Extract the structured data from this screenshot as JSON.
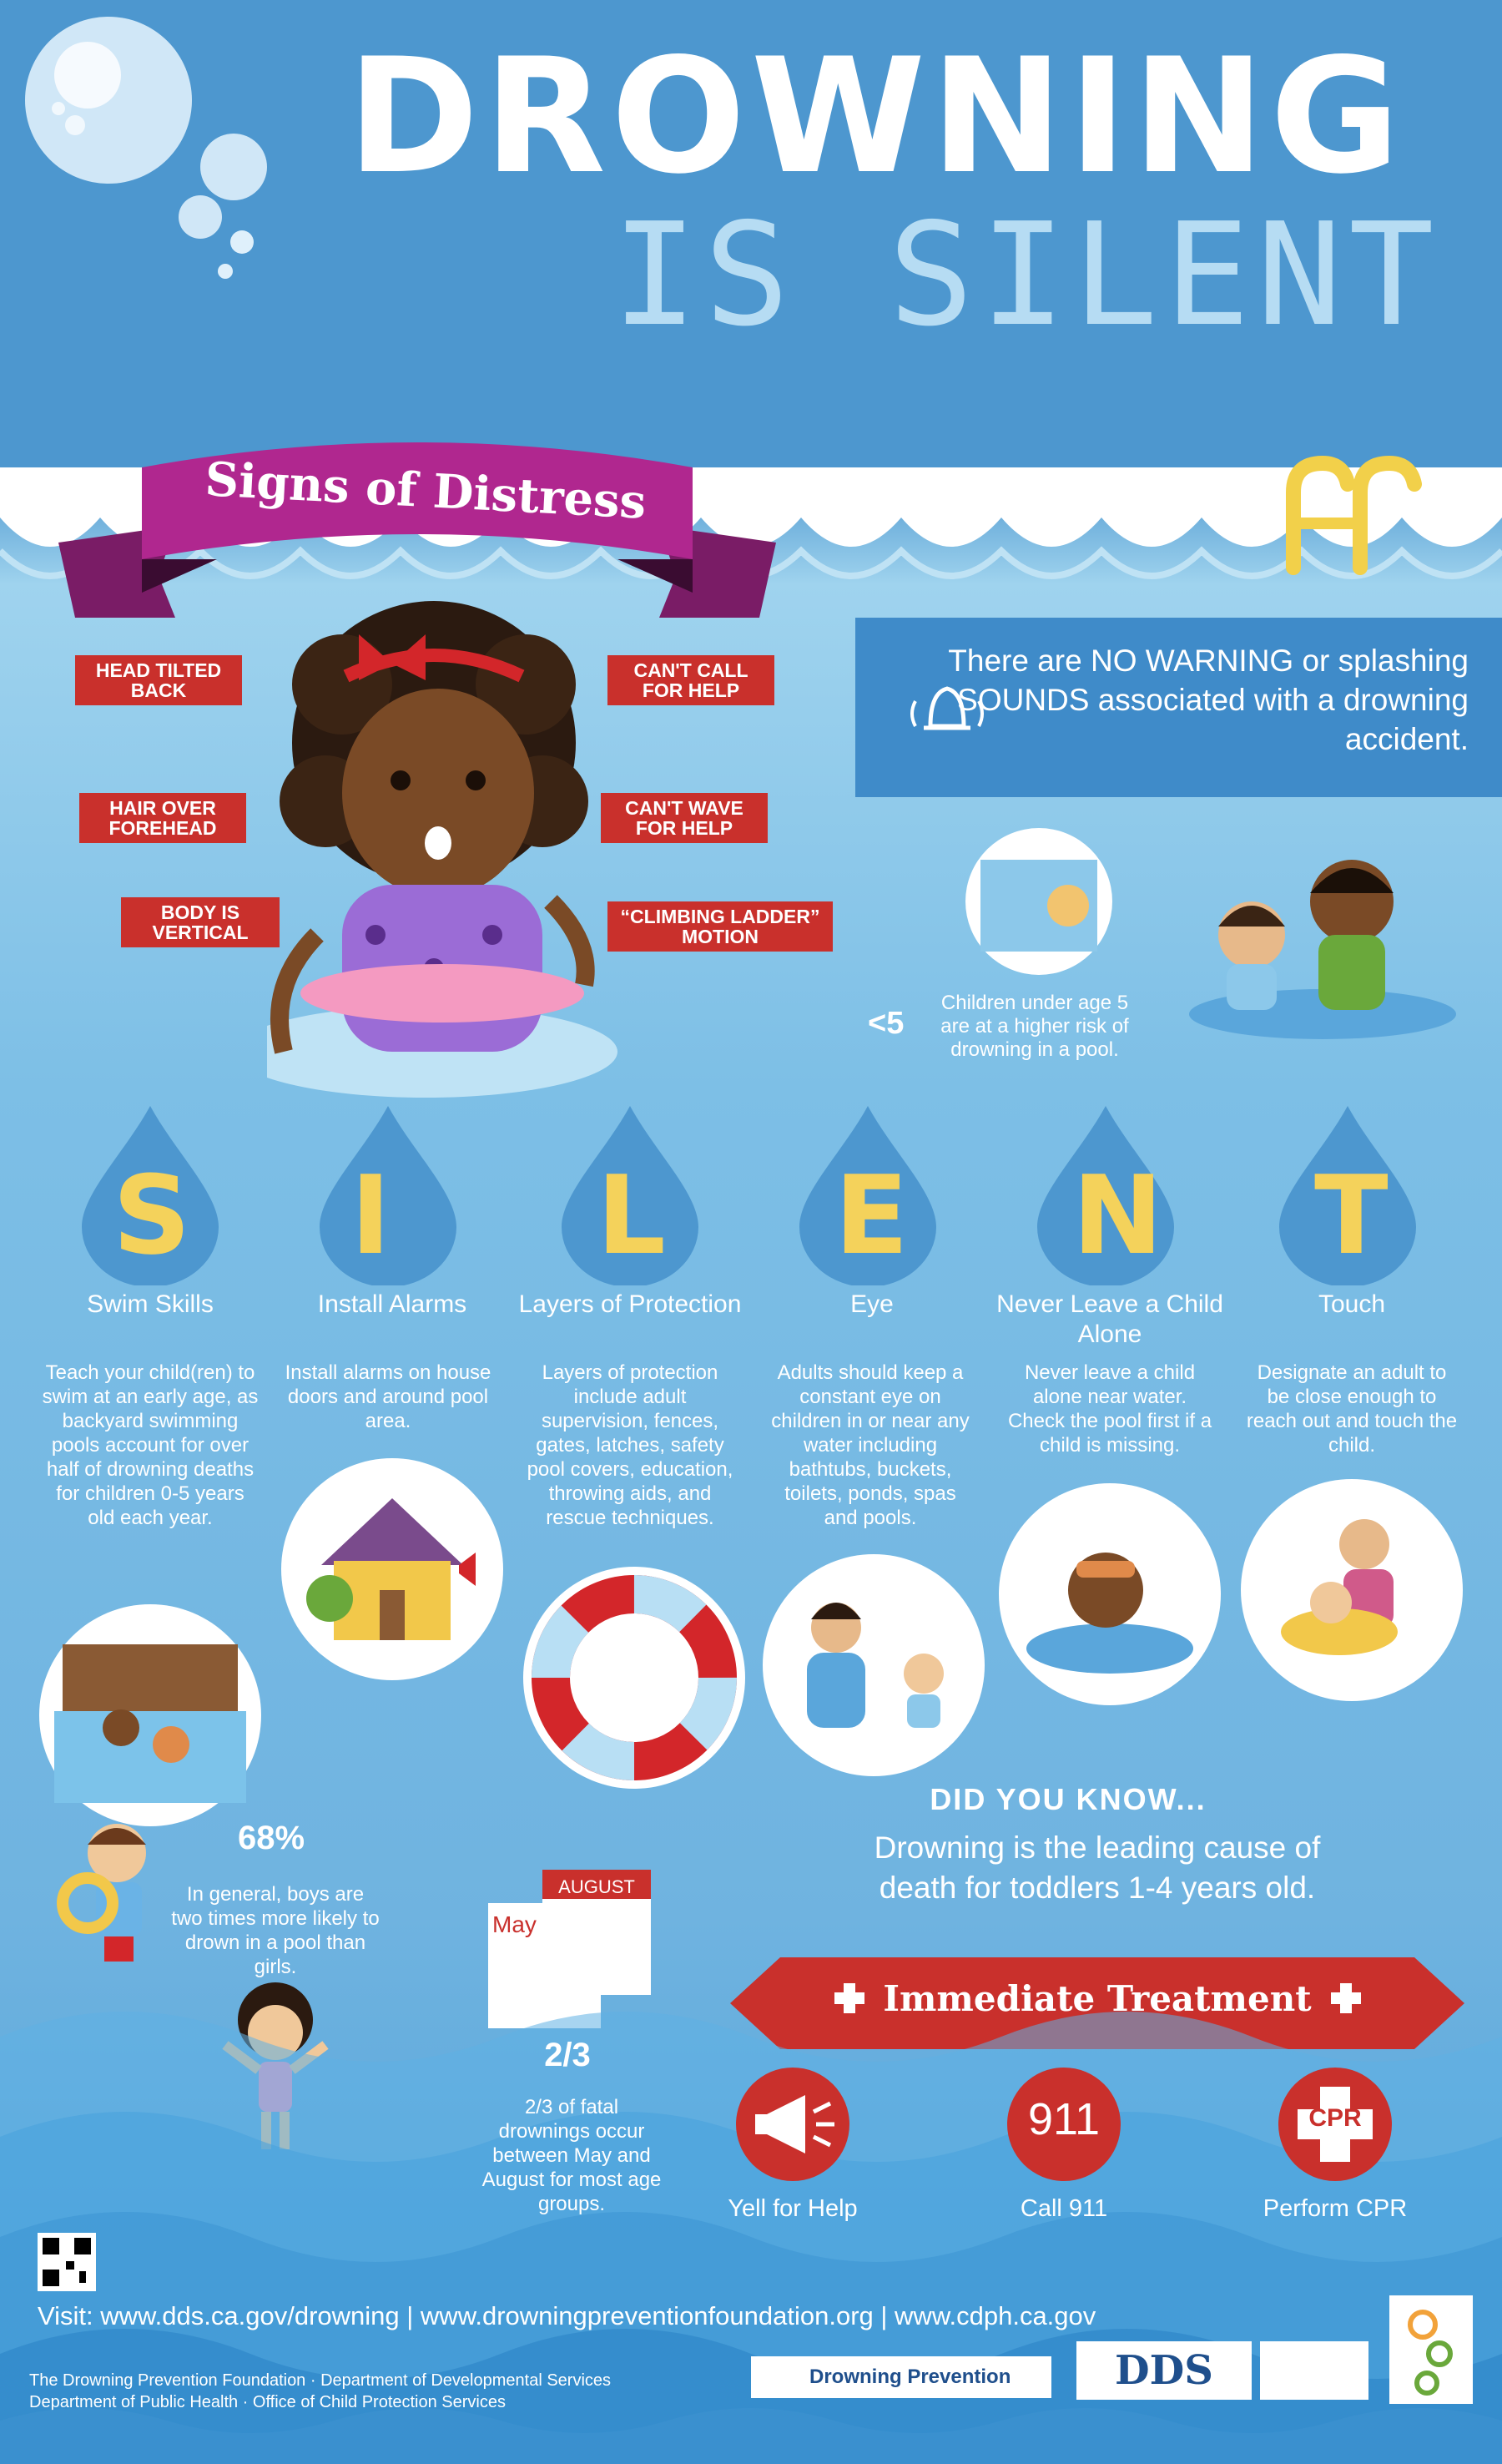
{
  "title": {
    "line1": "DROWNING",
    "line2": "IS SILENT"
  },
  "signs": {
    "banner": "Signs of Distress",
    "tags": [
      "HEAD TILTED BACK",
      "HAIR OVER FOREHEAD",
      "BODY IS VERTICAL",
      "CAN'T CALL FOR HELP",
      "CAN'T WAVE FOR HELP",
      "“CLIMBING LADDER” MOTION"
    ]
  },
  "no_warning": "There are NO WARNING or splashing SOUNDS associated with a drowning accident.",
  "under5": {
    "symbol": "<5",
    "text": "Children under age 5 are at a higher risk of drowning in a pool."
  },
  "silent": [
    {
      "letter": "S",
      "title": "Swim Skills",
      "body": "Teach your child(ren) to swim at an early age, as backyard swimming pools account for over half of drowning deaths for children 0-5 years old each year."
    },
    {
      "letter": "I",
      "title": "Install Alarms",
      "body": "Install alarms on house doors and around pool area."
    },
    {
      "letter": "L",
      "title": "Layers of Protection",
      "body": "Layers of protection include adult supervision, fences, gates, latches, safety pool covers, education, throwing aids, and rescue techniques."
    },
    {
      "letter": "E",
      "title": "Eye",
      "body": "Adults should keep a constant eye on children in or near any water including bathtubs, buckets, toilets, ponds, spas and pools."
    },
    {
      "letter": "N",
      "title": "Never Leave a Child Alone",
      "body": "Never leave a child alone near water. Check the pool first if a child is missing."
    },
    {
      "letter": "T",
      "title": "Touch",
      "body": "Designate an adult to be close enough to reach out and touch the child."
    }
  ],
  "did_you_know": {
    "heading": "DID YOU KNOW...",
    "body": "Drowning is the leading cause of death for toddlers 1-4 years old."
  },
  "stat68": {
    "value": "68%",
    "text": "In general, boys are two times more likely to drown in a pool than girls."
  },
  "calendar": {
    "month1": "May",
    "month2": "AUGUST"
  },
  "stat23": {
    "value": "2/3",
    "text": "2/3 of fatal drownings occur between May and August for most age groups."
  },
  "treatment": {
    "banner": "Immediate Treatment",
    "items": [
      {
        "icon": "megaphone-icon",
        "label": "Yell for Help"
      },
      {
        "icon": "phone-911-icon",
        "badge": "911",
        "label": "Call 911"
      },
      {
        "icon": "cpr-cross-icon",
        "badge": "CPR",
        "label": "Perform CPR"
      }
    ]
  },
  "visit": "Visit: www.dds.ca.gov/drowning | www.drowningpreventionfoundation.org | www.cdph.ca.gov",
  "footer": {
    "line1": "The Drowning Prevention Foundation  ·  Department of Developmental Services",
    "line2": "Department of Public Health  ·  Office of Child Protection Services"
  },
  "logos": [
    "Drowning Prevention",
    "DDS"
  ],
  "colors": {
    "sky": "#4d97cf",
    "water": "#8ec5e6",
    "tag_red": "#c9302c",
    "banner_magenta": "#b0278f",
    "letter_yellow": "#f4d25b",
    "treatment_red": "#c9302c"
  }
}
